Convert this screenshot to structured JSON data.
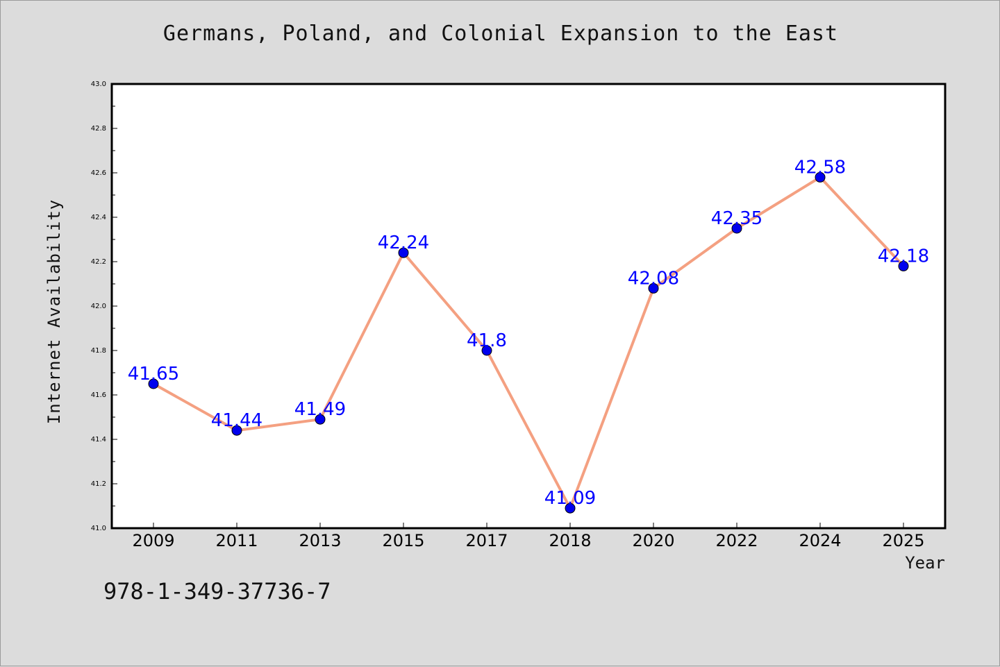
{
  "footer": {
    "isbn": "978-1-349-37736-7"
  },
  "chart_data": {
    "type": "line",
    "title": "Germans, Poland, and Colonial Expansion to the East",
    "xlabel": "Year",
    "ylabel": "Internet Availability",
    "categories": [
      "2009",
      "2011",
      "2013",
      "2015",
      "2017",
      "2018",
      "2020",
      "2022",
      "2024",
      "2025"
    ],
    "series": [
      {
        "values": [
          41.65,
          41.44,
          41.49,
          42.24,
          41.8,
          41.09,
          42.08,
          42.35,
          42.58,
          42.18
        ],
        "line_color": "#f4a081",
        "marker_color": "#0000ee",
        "label_color": "#0000ff"
      }
    ],
    "ylim": [
      41.0,
      43.0
    ],
    "yticks": [
      "41.0",
      "41.2",
      "41.4",
      "41.6",
      "41.8",
      "42.0",
      "42.2",
      "42.4",
      "42.6",
      "42.8",
      "43.0"
    ],
    "grid": false,
    "data_labels": true
  }
}
